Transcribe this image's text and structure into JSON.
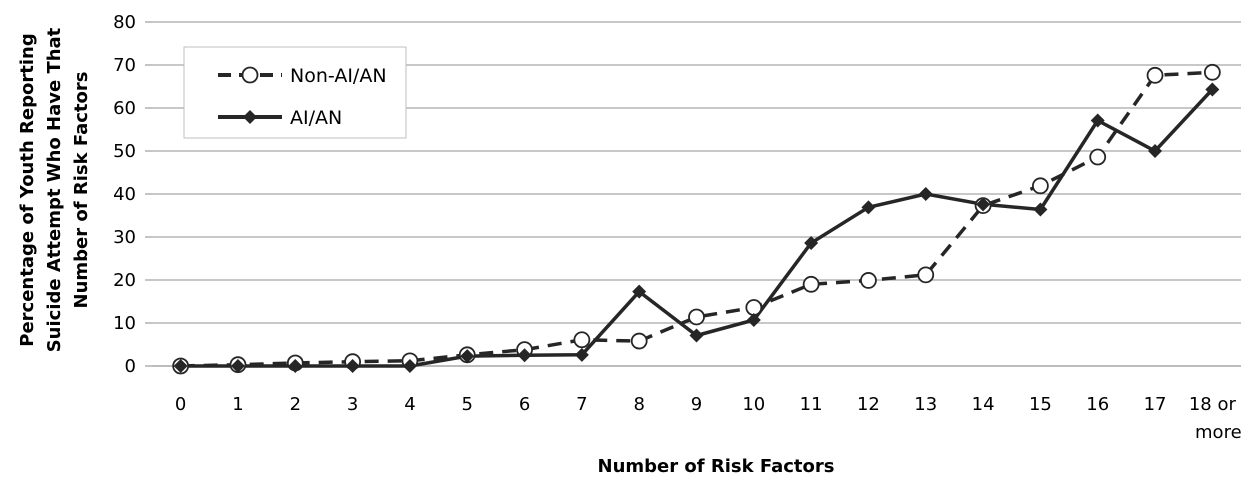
{
  "chart_data": {
    "type": "line",
    "categories": [
      "0",
      "1",
      "2",
      "3",
      "4",
      "5",
      "6",
      "7",
      "8",
      "9",
      "10",
      "11",
      "12",
      "13",
      "14",
      "15",
      "16",
      "17",
      "18 or more"
    ],
    "series": [
      {
        "name": "Non-AI/AN",
        "style": "dashed",
        "marker": "open-circle",
        "values": [
          0,
          0.3,
          0.7,
          1.0,
          1.2,
          2.6,
          3.8,
          6.1,
          5.8,
          11.4,
          13.6,
          19.0,
          19.9,
          21.2,
          37.3,
          41.9,
          48.6,
          67.6,
          68.3
        ]
      },
      {
        "name": "AI/AN",
        "style": "solid",
        "marker": "diamond",
        "values": [
          0,
          0,
          0,
          0,
          0,
          2.3,
          2.5,
          2.6,
          17.3,
          7.1,
          10.7,
          28.6,
          36.9,
          40.0,
          37.6,
          36.4,
          57.1,
          50.0,
          64.3
        ]
      }
    ],
    "xlabel": "Number of Risk Factors",
    "ylabel_lines": [
      "Percentage of Youth Reporting",
      "Suicide Attempt Who Have That",
      "Number of Risk Factors"
    ],
    "ylim": [
      0,
      80
    ],
    "yticks": [
      0,
      10,
      20,
      30,
      40,
      50,
      60,
      70,
      80
    ],
    "grid": true,
    "legend": "top-left",
    "colors": {
      "line": "#262626",
      "grid": "#a6a6a6",
      "marker_fill_open": "#ffffff"
    }
  }
}
